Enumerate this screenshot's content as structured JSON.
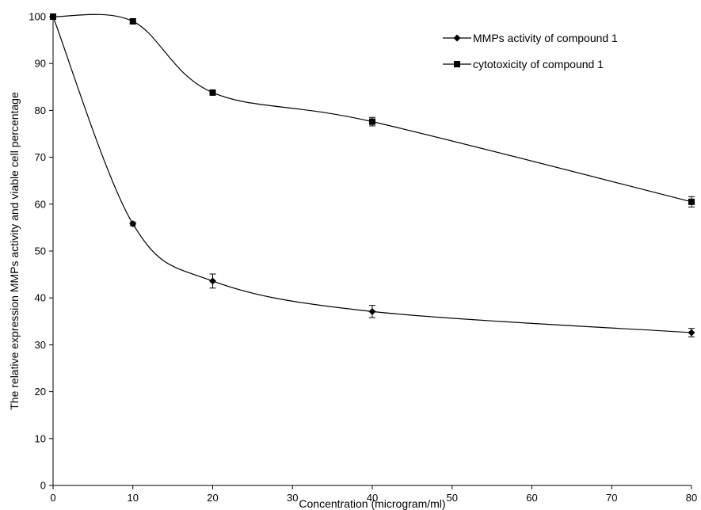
{
  "chart_data": {
    "type": "line",
    "xlabel": "Concentration (microgram/ml)",
    "ylabel": "The relative expression MMPs activity and viable cell percentage",
    "xlim": [
      0,
      80
    ],
    "ylim": [
      0,
      100
    ],
    "x_ticks": [
      "0",
      "10",
      "20",
      "30",
      "40",
      "50",
      "60",
      "70",
      "80"
    ],
    "y_ticks": [
      "0",
      "10",
      "20",
      "30",
      "40",
      "50",
      "60",
      "70",
      "80",
      "90",
      "100"
    ],
    "grid": false,
    "smooth": true,
    "legend_position": "top-right",
    "series": [
      {
        "name": "MMPs activity of compound 1",
        "marker": "diamond",
        "color": "#000000",
        "x": [
          0,
          10,
          20,
          40,
          80
        ],
        "y": [
          100,
          55.8,
          43.6,
          37.1,
          32.6
        ],
        "error": [
          0,
          0.4,
          1.5,
          1.3,
          0.9
        ]
      },
      {
        "name": "cytotoxicity of compound 1",
        "marker": "square",
        "color": "#000000",
        "x": [
          0,
          10,
          20,
          40,
          80
        ],
        "y": [
          100,
          99,
          83.8,
          77.6,
          60.5
        ],
        "error": [
          0,
          0.5,
          0.4,
          0.9,
          1.1
        ]
      }
    ]
  }
}
